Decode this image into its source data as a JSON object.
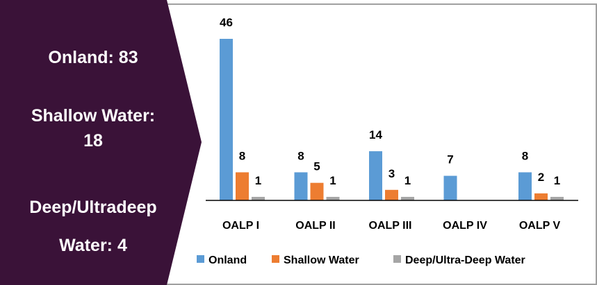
{
  "summary": {
    "onland": "Onland: 83",
    "shallow_line1": "Shallow Water:",
    "shallow_line2": "18",
    "deep_line1": "Deep/Ultradeep",
    "deep_line2": "Water: 4"
  },
  "colors": {
    "panel": "#3a1238",
    "onland": "#5b9bd5",
    "shallow": "#ed7d31",
    "deep": "#a5a5a5",
    "frame": "#a0a0a0"
  },
  "chart_data": {
    "type": "bar",
    "categories": [
      "OALP I",
      "OALP II",
      "OALP III",
      "OALP IV",
      "OALP V"
    ],
    "series": [
      {
        "name": "Onland",
        "values": [
          46,
          8,
          14,
          7,
          8
        ]
      },
      {
        "name": "Shallow Water",
        "values": [
          8,
          5,
          3,
          null,
          2
        ]
      },
      {
        "name": "Deep/Ultra-Deep Water",
        "values": [
          1,
          1,
          1,
          null,
          1
        ]
      }
    ],
    "ylim": [
      0,
      46
    ],
    "grid": false,
    "legend_position": "bottom"
  }
}
